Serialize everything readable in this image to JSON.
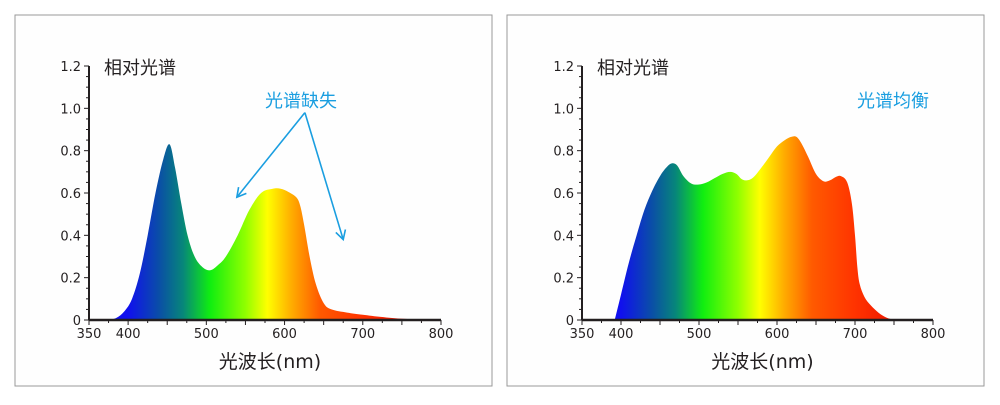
{
  "colors": {
    "axis": "#231f20",
    "annotation": "#1a9ee0",
    "panel_border": "#999999",
    "panel_bg": "#fefefe"
  },
  "spectrum_gradient": [
    {
      "nm": 400,
      "color": "#1010ee"
    },
    {
      "nm": 440,
      "color": "#0a4fa6"
    },
    {
      "nm": 470,
      "color": "#07867a"
    },
    {
      "nm": 505,
      "color": "#10ee10"
    },
    {
      "nm": 550,
      "color": "#90ff00"
    },
    {
      "nm": 578,
      "color": "#ffff00"
    },
    {
      "nm": 610,
      "color": "#ffaa00"
    },
    {
      "nm": 645,
      "color": "#ff5a00"
    },
    {
      "nm": 700,
      "color": "#ff3300"
    },
    {
      "nm": 760,
      "color": "#ee1100"
    }
  ],
  "chart_data": [
    {
      "type": "area",
      "title": "相对光谱",
      "xlabel": "光波长(nm)",
      "ylabel": "",
      "xlim": [
        350,
        800
      ],
      "ylim": [
        0,
        1.2
      ],
      "x_ticks": [
        "350",
        "400",
        "500",
        "600",
        "700",
        "800"
      ],
      "y_ticks": [
        "0",
        "0.2",
        "0.4",
        "0.6",
        "0.8",
        "1.0",
        "1.2"
      ],
      "grid": false,
      "annotation": {
        "text": "光谱缺失",
        "arrow_from": [
          626,
          0.98
        ],
        "arrow_to": [
          [
            539,
            0.58
          ],
          [
            675,
            0.38
          ]
        ]
      },
      "x": [
        375,
        385,
        395,
        405,
        415,
        425,
        435,
        445,
        453,
        460,
        468,
        476,
        485,
        495,
        505,
        515,
        525,
        540,
        555,
        570,
        585,
        595,
        605,
        615,
        620,
        625,
        632,
        640,
        650,
        660,
        680,
        700,
        730,
        760,
        790
      ],
      "y": [
        0,
        0.01,
        0.04,
        0.1,
        0.22,
        0.4,
        0.6,
        0.76,
        0.83,
        0.72,
        0.55,
        0.4,
        0.3,
        0.25,
        0.235,
        0.26,
        0.3,
        0.4,
        0.52,
        0.6,
        0.62,
        0.62,
        0.605,
        0.58,
        0.54,
        0.45,
        0.3,
        0.17,
        0.08,
        0.05,
        0.035,
        0.025,
        0.012,
        0.004,
        0
      ]
    },
    {
      "type": "area",
      "title": "相对光谱",
      "xlabel": "光波长(nm)",
      "ylabel": "",
      "xlim": [
        350,
        800
      ],
      "ylim": [
        0,
        1.2
      ],
      "x_ticks": [
        "350",
        "400",
        "500",
        "600",
        "700",
        "800"
      ],
      "y_ticks": [
        "0",
        "0.2",
        "0.4",
        "0.6",
        "0.8",
        "1.0",
        "1.2"
      ],
      "grid": false,
      "annotation": {
        "text": "光谱均衡"
      },
      "x": [
        392,
        400,
        410,
        420,
        430,
        440,
        450,
        458,
        465,
        472,
        480,
        490,
        500,
        510,
        520,
        530,
        540,
        548,
        555,
        562,
        570,
        580,
        590,
        600,
        610,
        618,
        625,
        632,
        640,
        650,
        660,
        668,
        675,
        682,
        690,
        696,
        700,
        703,
        706,
        712,
        720,
        730,
        740,
        750
      ],
      "y": [
        0,
        0.12,
        0.27,
        0.4,
        0.52,
        0.61,
        0.68,
        0.72,
        0.74,
        0.73,
        0.68,
        0.645,
        0.64,
        0.65,
        0.67,
        0.69,
        0.7,
        0.69,
        0.665,
        0.66,
        0.675,
        0.72,
        0.77,
        0.82,
        0.85,
        0.865,
        0.865,
        0.83,
        0.77,
        0.69,
        0.655,
        0.66,
        0.675,
        0.68,
        0.65,
        0.55,
        0.4,
        0.25,
        0.17,
        0.11,
        0.07,
        0.035,
        0.012,
        0
      ]
    }
  ]
}
